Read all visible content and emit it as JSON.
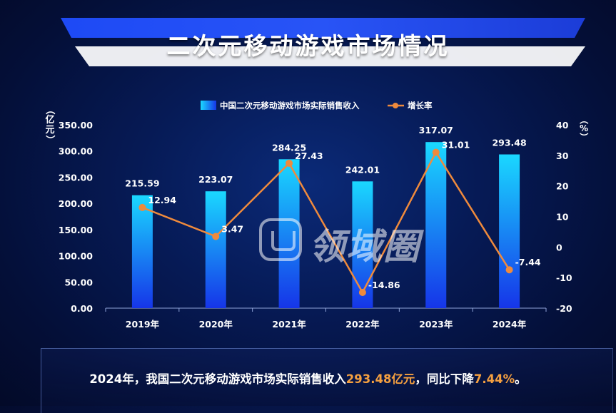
{
  "page": {
    "title": "二次元移动游戏市场情况",
    "summary": {
      "prefix": "2024年，我国二次元移动游戏市场实际销售收入",
      "revenue": "293.48亿元",
      "middle": "，同比下降",
      "decline": "7.44%",
      "suffix": "。"
    },
    "watermark": "领域圈"
  },
  "colors": {
    "bar_top": "#1ad8ff",
    "bar_bottom": "#1635e8",
    "line": "#ef8a3c",
    "summary_highlight": "#f5a040"
  },
  "chart_data": {
    "type": "bar",
    "categories": [
      "2019年",
      "2020年",
      "2021年",
      "2022年",
      "2023年",
      "2024年"
    ],
    "series": [
      {
        "name": "中国二次元移动游戏市场实际销售收入",
        "type": "bar",
        "axis": "left",
        "values": [
          215.59,
          223.07,
          284.25,
          242.01,
          317.07,
          293.48
        ],
        "labels": [
          "215.59",
          "223.07",
          "284.25",
          "242.01",
          "317.07",
          "293.48"
        ]
      },
      {
        "name": "增长率",
        "type": "line",
        "axis": "right",
        "values": [
          12.94,
          3.47,
          27.43,
          -14.86,
          31.01,
          -7.44
        ],
        "labels": [
          "12.94",
          "3.47",
          "27.43",
          "-14.86",
          "31.01",
          "-7.44"
        ]
      }
    ],
    "left_axis": {
      "label": "（亿元）",
      "ylim": [
        0,
        350
      ],
      "ticks": [
        "0.00",
        "50.00",
        "100.00",
        "150.00",
        "200.00",
        "250.00",
        "300.00",
        "350.00"
      ]
    },
    "right_axis": {
      "label": "（%）",
      "ylim": [
        -20,
        40
      ],
      "ticks": [
        "-20",
        "-10",
        "0",
        "10",
        "20",
        "30",
        "40"
      ]
    },
    "legend_position": "top-center",
    "grid": false
  }
}
